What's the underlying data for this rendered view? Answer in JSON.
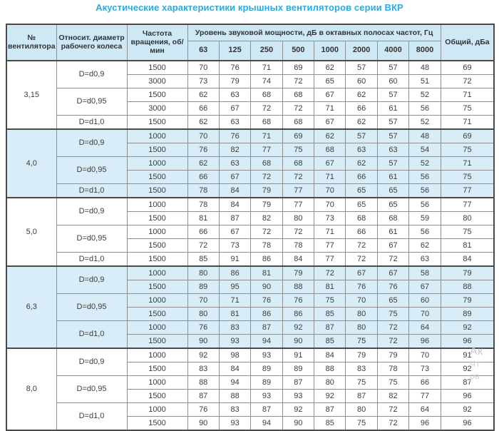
{
  "title": "Акустические характеристики крышных вентиляторов серии ВКР",
  "table": {
    "headers": {
      "fan_no": "№ вентилятора",
      "diameter": "Относит. диаметр рабочего колеса",
      "speed": "Частота вращения, об/мин",
      "levels_group": "Уровень звуковой мощности, дБ в октавных полосах частот, Гц",
      "frequencies": [
        "63",
        "125",
        "250",
        "500",
        "1000",
        "2000",
        "4000",
        "8000"
      ],
      "total": "Общий, дБа"
    },
    "groups": [
      {
        "fan": "3,15",
        "shaded": false,
        "subgroups": [
          {
            "diameter": "D=d0,9",
            "rows": [
              {
                "speed": "1500",
                "levels": [
                  70,
                  76,
                  71,
                  69,
                  62,
                  57,
                  57,
                  48
                ],
                "total": 69
              },
              {
                "speed": "3000",
                "levels": [
                  73,
                  79,
                  74,
                  72,
                  65,
                  60,
                  60,
                  51
                ],
                "total": 72
              }
            ]
          },
          {
            "diameter": "D=d0,95",
            "rows": [
              {
                "speed": "1500",
                "levels": [
                  62,
                  63,
                  68,
                  68,
                  67,
                  62,
                  57,
                  52
                ],
                "total": 71
              },
              {
                "speed": "3000",
                "levels": [
                  66,
                  67,
                  72,
                  72,
                  71,
                  66,
                  61,
                  56
                ],
                "total": 75
              }
            ]
          },
          {
            "diameter": "D=d1,0",
            "rows": [
              {
                "speed": "1500",
                "levels": [
                  62,
                  63,
                  68,
                  68,
                  67,
                  62,
                  57,
                  52
                ],
                "total": 71
              }
            ]
          }
        ]
      },
      {
        "fan": "4,0",
        "shaded": true,
        "subgroups": [
          {
            "diameter": "D=d0,9",
            "rows": [
              {
                "speed": "1000",
                "levels": [
                  70,
                  76,
                  71,
                  69,
                  62,
                  57,
                  57,
                  48
                ],
                "total": 69
              },
              {
                "speed": "1500",
                "levels": [
                  76,
                  82,
                  77,
                  75,
                  68,
                  63,
                  63,
                  54
                ],
                "total": 75
              }
            ]
          },
          {
            "diameter": "D=d0,95",
            "rows": [
              {
                "speed": "1000",
                "levels": [
                  62,
                  63,
                  68,
                  68,
                  67,
                  62,
                  57,
                  52
                ],
                "total": 71
              },
              {
                "speed": "1500",
                "levels": [
                  66,
                  67,
                  72,
                  72,
                  71,
                  66,
                  61,
                  56
                ],
                "total": 75
              }
            ]
          },
          {
            "diameter": "D=d1,0",
            "rows": [
              {
                "speed": "1500",
                "levels": [
                  78,
                  84,
                  79,
                  77,
                  70,
                  65,
                  65,
                  56
                ],
                "total": 77
              }
            ]
          }
        ]
      },
      {
        "fan": "5,0",
        "shaded": false,
        "subgroups": [
          {
            "diameter": "D=d0,9",
            "rows": [
              {
                "speed": "1000",
                "levels": [
                  78,
                  84,
                  79,
                  77,
                  70,
                  65,
                  65,
                  56
                ],
                "total": 77
              },
              {
                "speed": "1500",
                "levels": [
                  81,
                  87,
                  82,
                  80,
                  73,
                  68,
                  68,
                  59
                ],
                "total": 80
              }
            ]
          },
          {
            "diameter": "D=d0,95",
            "rows": [
              {
                "speed": "1000",
                "levels": [
                  66,
                  67,
                  72,
                  72,
                  71,
                  66,
                  61,
                  56
                ],
                "total": 75
              },
              {
                "speed": "1500",
                "levels": [
                  72,
                  73,
                  78,
                  78,
                  77,
                  72,
                  67,
                  62
                ],
                "total": 81
              }
            ]
          },
          {
            "diameter": "D=d1,0",
            "rows": [
              {
                "speed": "1500",
                "levels": [
                  85,
                  91,
                  86,
                  84,
                  77,
                  72,
                  72,
                  63
                ],
                "total": 84
              }
            ]
          }
        ]
      },
      {
        "fan": "6,3",
        "shaded": true,
        "subgroups": [
          {
            "diameter": "D=d0,9",
            "rows": [
              {
                "speed": "1000",
                "levels": [
                  80,
                  86,
                  81,
                  79,
                  72,
                  67,
                  67,
                  58
                ],
                "total": 79
              },
              {
                "speed": "1500",
                "levels": [
                  89,
                  95,
                  90,
                  88,
                  81,
                  76,
                  76,
                  67
                ],
                "total": 88
              }
            ]
          },
          {
            "diameter": "D=d0,95",
            "rows": [
              {
                "speed": "1000",
                "levels": [
                  70,
                  71,
                  76,
                  76,
                  75,
                  70,
                  65,
                  60
                ],
                "total": 79
              },
              {
                "speed": "1500",
                "levels": [
                  80,
                  81,
                  86,
                  86,
                  85,
                  80,
                  75,
                  70
                ],
                "total": 89
              }
            ]
          },
          {
            "diameter": "D=d1,0",
            "rows": [
              {
                "speed": "1000",
                "levels": [
                  76,
                  83,
                  87,
                  92,
                  87,
                  80,
                  72,
                  64
                ],
                "total": 92
              },
              {
                "speed": "1500",
                "levels": [
                  90,
                  93,
                  94,
                  90,
                  85,
                  75,
                  72,
                  96
                ],
                "total": 96
              }
            ]
          }
        ]
      },
      {
        "fan": "8,0",
        "shaded": false,
        "subgroups": [
          {
            "diameter": "D=d0,9",
            "rows": [
              {
                "speed": "1000",
                "levels": [
                  92,
                  98,
                  93,
                  91,
                  84,
                  79,
                  79,
                  70
                ],
                "total": 91
              },
              {
                "speed": "1500",
                "levels": [
                  83,
                  84,
                  89,
                  89,
                  88,
                  83,
                  78,
                  73
                ],
                "total": 92
              }
            ]
          },
          {
            "diameter": "D=d0,95",
            "rows": [
              {
                "speed": "1000",
                "levels": [
                  88,
                  94,
                  89,
                  87,
                  80,
                  75,
                  75,
                  66
                ],
                "total": 87
              },
              {
                "speed": "1500",
                "levels": [
                  87,
                  88,
                  93,
                  93,
                  92,
                  87,
                  82,
                  77
                ],
                "total": 96
              }
            ]
          },
          {
            "diameter": "D=d1,0",
            "rows": [
              {
                "speed": "1000",
                "levels": [
                  76,
                  83,
                  87,
                  92,
                  87,
                  80,
                  72,
                  64
                ],
                "total": 92
              },
              {
                "speed": "1500",
                "levels": [
                  90,
                  93,
                  94,
                  90,
                  85,
                  75,
                  72,
                  96
                ],
                "total": 96
              }
            ]
          }
        ]
      }
    ]
  },
  "watermark": {
    "lines": [
      "Ак",
      "Чт",
      "ра"
    ]
  },
  "colors": {
    "title": "#29abe2",
    "header_bg": "#cfe8f6",
    "band_bg": "#d9edf8",
    "border": "#8f8f8f",
    "border_dark": "#4a4a4a",
    "text": "#3c3c3c"
  }
}
